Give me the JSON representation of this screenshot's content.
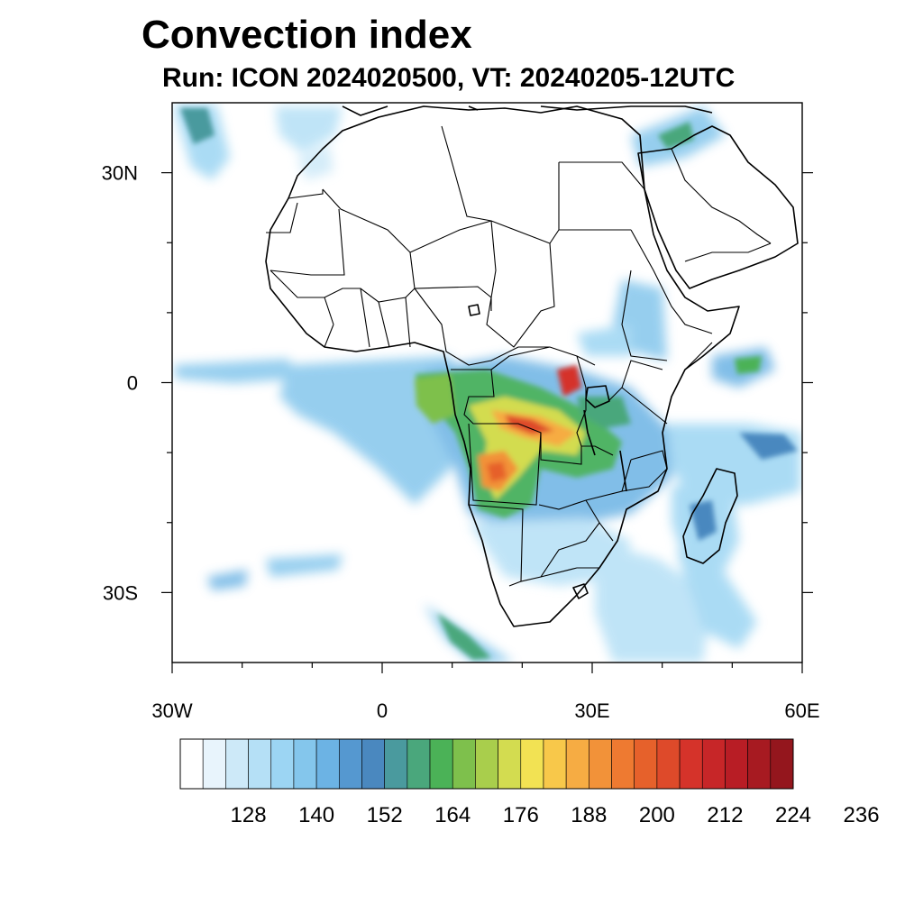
{
  "title": "Convection index",
  "subtitle": "Run: ICON 2024020500,  VT: 20240205-12UTC",
  "map": {
    "lon_range": [
      -30,
      60
    ],
    "lat_range": [
      -40,
      40
    ],
    "lat_ticks": [
      {
        "value": 30,
        "label": "30N"
      },
      {
        "value": 0,
        "label": "0"
      },
      {
        "value": -30,
        "label": "30S"
      }
    ],
    "lon_ticks": [
      {
        "value": -30,
        "label": "30W"
      },
      {
        "value": 0,
        "label": "0"
      },
      {
        "value": 30,
        "label": "30E"
      },
      {
        "value": 60,
        "label": "60E"
      }
    ],
    "lon_minor_ticks": [
      -20,
      -10,
      10,
      20,
      40,
      50
    ],
    "lat_minor_ticks": [
      20,
      10,
      -10,
      -20
    ]
  },
  "colorbar": {
    "colors": [
      "#ffffff",
      "#e8f4fc",
      "#cde9f8",
      "#b5e0f6",
      "#9cd5f3",
      "#84c6ec",
      "#6cb3e4",
      "#5598d0",
      "#4a88bf",
      "#4a9a9e",
      "#4aa77c",
      "#4bb257",
      "#7ec04c",
      "#a9ce4c",
      "#d3dc50",
      "#f2e253",
      "#f8c84a",
      "#f6ac43",
      "#f29239",
      "#ee7a31",
      "#e6612b",
      "#de4a2a",
      "#d5332a",
      "#c72628",
      "#b81d25",
      "#a71a21",
      "#94161d"
    ],
    "labels": [
      "128",
      "140",
      "152",
      "164",
      "176",
      "188",
      "200",
      "212",
      "224",
      "236"
    ]
  }
}
